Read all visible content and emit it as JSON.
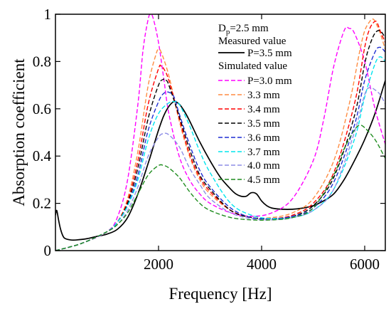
{
  "chart_data": {
    "type": "line",
    "title": "",
    "xlabel": "Frequency [Hz]",
    "ylabel": "Absorption coefficient",
    "xlim": [
      0,
      6400
    ],
    "ylim": [
      0,
      1
    ],
    "xticks": [
      2000,
      4000,
      6000
    ],
    "xtick_labels": [
      "2000",
      "4000",
      "6000"
    ],
    "yticks": [
      0,
      0.2,
      0.4,
      0.6,
      0.8,
      1
    ],
    "ytick_labels": [
      "0",
      "0.2",
      "0.4",
      "0.6",
      "0.8",
      "1"
    ],
    "grid": false,
    "legend": {
      "position": "top-right",
      "header_main": "D",
      "header_sub": "p",
      "header_rest": "=2.5 mm",
      "measured_heading": "Measured value",
      "simulated_heading": "Simulated value"
    },
    "series": [
      {
        "name": "P=3.5 mm",
        "group": "measured",
        "color": "#000000",
        "dash": "solid",
        "x": [
          0,
          25,
          60,
          100,
          150,
          200,
          300,
          400,
          600,
          800,
          1000,
          1200,
          1400,
          1600,
          1800,
          1900,
          2000,
          2100,
          2200,
          2300,
          2400,
          2500,
          2600,
          2800,
          3000,
          3200,
          3400,
          3500,
          3600,
          3700,
          3800,
          3900,
          4000,
          4100,
          4200,
          4400,
          4600,
          4800,
          5000,
          5200,
          5400,
          5600,
          5800,
          6000,
          6200,
          6400
        ],
        "y": [
          0.15,
          0.17,
          0.13,
          0.09,
          0.06,
          0.05,
          0.045,
          0.045,
          0.05,
          0.06,
          0.07,
          0.09,
          0.14,
          0.24,
          0.37,
          0.44,
          0.51,
          0.57,
          0.61,
          0.63,
          0.62,
          0.59,
          0.55,
          0.46,
          0.38,
          0.31,
          0.26,
          0.24,
          0.23,
          0.23,
          0.245,
          0.24,
          0.21,
          0.19,
          0.18,
          0.175,
          0.175,
          0.18,
          0.19,
          0.21,
          0.24,
          0.3,
          0.38,
          0.47,
          0.58,
          0.72
        ]
      },
      {
        "name": "P=3.0 mm",
        "group": "simulated",
        "color": "#ff00ff",
        "dash": "dashed",
        "x": [
          0,
          500,
          1000,
          1200,
          1400,
          1600,
          1700,
          1800,
          1850,
          1900,
          2000,
          2100,
          2200,
          2400,
          2600,
          2800,
          3000,
          3400,
          3800,
          4200,
          4600,
          5000,
          5200,
          5400,
          5600,
          5700,
          5800,
          6000,
          6200,
          6400
        ],
        "y": [
          0,
          0.03,
          0.08,
          0.14,
          0.3,
          0.62,
          0.85,
          0.98,
          1.0,
          0.98,
          0.88,
          0.73,
          0.58,
          0.4,
          0.3,
          0.24,
          0.2,
          0.16,
          0.145,
          0.16,
          0.22,
          0.38,
          0.55,
          0.78,
          0.93,
          0.94,
          0.92,
          0.8,
          0.6,
          0.45
        ]
      },
      {
        "name": "3.3 mm",
        "group": "simulated",
        "color": "#ff8c42",
        "dash": "dashed",
        "x": [
          0,
          500,
          1000,
          1200,
          1400,
          1600,
          1800,
          1950,
          2000,
          2050,
          2200,
          2400,
          2600,
          2800,
          3000,
          3400,
          3800,
          4200,
          4600,
          5000,
          5400,
          5700,
          5900,
          6000,
          6100,
          6150,
          6200,
          6300,
          6400
        ],
        "y": [
          0,
          0.03,
          0.08,
          0.12,
          0.22,
          0.42,
          0.7,
          0.83,
          0.85,
          0.84,
          0.74,
          0.55,
          0.4,
          0.3,
          0.24,
          0.17,
          0.14,
          0.14,
          0.16,
          0.22,
          0.38,
          0.62,
          0.84,
          0.93,
          0.97,
          0.98,
          0.97,
          0.92,
          0.85
        ]
      },
      {
        "name": "3.4 mm",
        "group": "simulated",
        "color": "#ff0000",
        "dash": "dashed",
        "x": [
          0,
          500,
          1000,
          1200,
          1400,
          1600,
          1800,
          2000,
          2050,
          2100,
          2200,
          2400,
          2600,
          2800,
          3000,
          3400,
          3800,
          4200,
          4600,
          5000,
          5400,
          5800,
          6000,
          6100,
          6200,
          6250,
          6300,
          6400
        ],
        "y": [
          0,
          0.03,
          0.08,
          0.12,
          0.21,
          0.38,
          0.62,
          0.77,
          0.78,
          0.77,
          0.72,
          0.56,
          0.41,
          0.31,
          0.25,
          0.17,
          0.14,
          0.135,
          0.15,
          0.2,
          0.33,
          0.62,
          0.86,
          0.94,
          0.97,
          0.96,
          0.93,
          0.88
        ]
      },
      {
        "name": "3.5 mm",
        "group": "simulated",
        "color": "#000000",
        "dash": "dashed",
        "x": [
          0,
          500,
          1000,
          1200,
          1400,
          1600,
          1800,
          2000,
          2100,
          2150,
          2200,
          2400,
          2600,
          2800,
          3000,
          3400,
          3800,
          4200,
          4600,
          5000,
          5400,
          5800,
          6000,
          6100,
          6200,
          6300,
          6400
        ],
        "y": [
          0,
          0.03,
          0.08,
          0.12,
          0.2,
          0.35,
          0.56,
          0.7,
          0.725,
          0.72,
          0.7,
          0.57,
          0.43,
          0.32,
          0.26,
          0.17,
          0.14,
          0.135,
          0.145,
          0.19,
          0.31,
          0.57,
          0.79,
          0.87,
          0.92,
          0.93,
          0.9
        ]
      },
      {
        "name": "3.6 mm",
        "group": "simulated",
        "color": "#1f2fd4",
        "dash": "dashed",
        "x": [
          0,
          500,
          1000,
          1200,
          1400,
          1600,
          1800,
          2000,
          2100,
          2200,
          2300,
          2400,
          2600,
          2800,
          3000,
          3400,
          3800,
          4200,
          4600,
          5000,
          5400,
          5800,
          6000,
          6200,
          6300,
          6400
        ],
        "y": [
          0,
          0.03,
          0.08,
          0.12,
          0.19,
          0.32,
          0.51,
          0.63,
          0.665,
          0.67,
          0.65,
          0.58,
          0.45,
          0.34,
          0.27,
          0.18,
          0.14,
          0.135,
          0.145,
          0.18,
          0.29,
          0.53,
          0.72,
          0.84,
          0.86,
          0.84
        ]
      },
      {
        "name": "3.7 mm",
        "group": "simulated",
        "color": "#00e5ee",
        "dash": "dashed",
        "x": [
          0,
          500,
          1000,
          1200,
          1400,
          1600,
          1800,
          2000,
          2200,
          2300,
          2400,
          2600,
          2800,
          3000,
          3400,
          3800,
          4200,
          4600,
          5000,
          5400,
          5800,
          6000,
          6200,
          6300,
          6400
        ],
        "y": [
          0,
          0.03,
          0.08,
          0.12,
          0.19,
          0.3,
          0.47,
          0.58,
          0.625,
          0.63,
          0.62,
          0.53,
          0.42,
          0.33,
          0.2,
          0.15,
          0.135,
          0.14,
          0.17,
          0.26,
          0.47,
          0.65,
          0.79,
          0.82,
          0.8
        ]
      },
      {
        "name": "4.0 mm",
        "group": "simulated",
        "color": "#8e8ee6",
        "dash": "dashed",
        "x": [
          0,
          500,
          1000,
          1200,
          1400,
          1600,
          1800,
          2000,
          2100,
          2200,
          2400,
          2600,
          2800,
          3000,
          3400,
          3800,
          4200,
          4600,
          5000,
          5400,
          5800,
          6000,
          6100,
          6200,
          6300,
          6400
        ],
        "y": [
          0,
          0.03,
          0.08,
          0.11,
          0.17,
          0.27,
          0.4,
          0.48,
          0.495,
          0.49,
          0.44,
          0.35,
          0.28,
          0.22,
          0.16,
          0.135,
          0.13,
          0.14,
          0.17,
          0.26,
          0.5,
          0.66,
          0.69,
          0.68,
          0.66,
          0.62
        ]
      },
      {
        "name": "4.5 mm",
        "group": "simulated",
        "color": "#1e8c1e",
        "dash": "dashed",
        "x": [
          0,
          500,
          1000,
          1200,
          1400,
          1600,
          1800,
          2000,
          2100,
          2200,
          2400,
          2600,
          2800,
          3000,
          3400,
          3800,
          4200,
          4600,
          5000,
          5400,
          5600,
          5800,
          5900,
          6000,
          6200,
          6400
        ],
        "y": [
          0,
          0.03,
          0.08,
          0.11,
          0.16,
          0.24,
          0.32,
          0.36,
          0.36,
          0.35,
          0.31,
          0.25,
          0.2,
          0.17,
          0.14,
          0.13,
          0.13,
          0.14,
          0.18,
          0.32,
          0.43,
          0.51,
          0.53,
          0.52,
          0.47,
          0.39
        ]
      }
    ]
  }
}
